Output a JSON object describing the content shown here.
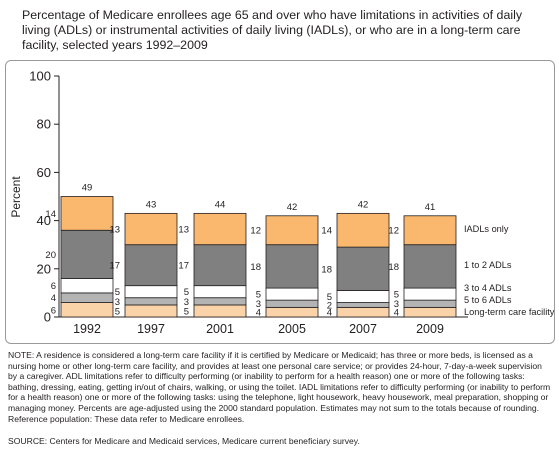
{
  "title": "Percentage of Medicare enrollees age 65 and over who have limitations in activities of daily living (ADLs) or instrumental activities of daily living (IADLs), or who are in a long-term care facility, selected years 1992–2009",
  "note": "NOTE:  A residence is considered a long-term care facility if it is certified by Medicare or Medicaid; has three or more beds, is licensed as a nursing home or other long-term care facility, and provides at least one personal care service; or provides 24-hour, 7-day-a-week supervision by a caregiver.  ADL limitations refer to difficulty performing (or inability to perform for a health reason) one or more of the following tasks:  bathing, dressing, eating, getting in/out of chairs, walking, or using the toilet.  IADL limitations refer to difficulty performing (or inability to perform for a health reason) one or more of the following tasks:  using the telephone, light housework, heavy housework, meal preparation, shopping or managing money.  Percents are age-adjusted using the 2000 standard population.  Estimates may not sum to the totals because of rounding.  Reference population: These data refer to Medicare enrollees.",
  "source": "SOURCE:  Centers for Medicare and Medicaid services, Medicare current beneficiary survey.",
  "colors": {
    "ltc": "#fad3a9",
    "adl56": "#b4b4b4",
    "adl34": "#ffffff",
    "adl12": "#808080",
    "iadl": "#f9b86d",
    "outline": "#231f20"
  },
  "chart_data": {
    "type": "bar",
    "stacked": true,
    "categories": [
      "1992",
      "1997",
      "2001",
      "2005",
      "2007",
      "2009"
    ],
    "ylabel": "Percent",
    "ylim": [
      0,
      100
    ],
    "yticks": [
      0,
      20,
      40,
      60,
      80,
      100
    ],
    "grid": false,
    "legend_position": "right",
    "series": [
      {
        "name": "Long-term care facility",
        "values": [
          6,
          5,
          5,
          4,
          4,
          4
        ],
        "color_key": "ltc"
      },
      {
        "name": "5 to 6 ADLs",
        "values": [
          4,
          3,
          3,
          3,
          2,
          3
        ],
        "color_key": "adl56"
      },
      {
        "name": "3 to 4 ADLs",
        "values": [
          6,
          5,
          5,
          5,
          5,
          5
        ],
        "color_key": "adl34"
      },
      {
        "name": "1 to 2 ADLs",
        "values": [
          20,
          17,
          17,
          18,
          18,
          18
        ],
        "color_key": "adl12"
      },
      {
        "name": "IADLs only",
        "values": [
          14,
          13,
          13,
          12,
          14,
          12
        ],
        "color_key": "iadl"
      }
    ],
    "totals": [
      49,
      43,
      44,
      42,
      42,
      41
    ]
  }
}
